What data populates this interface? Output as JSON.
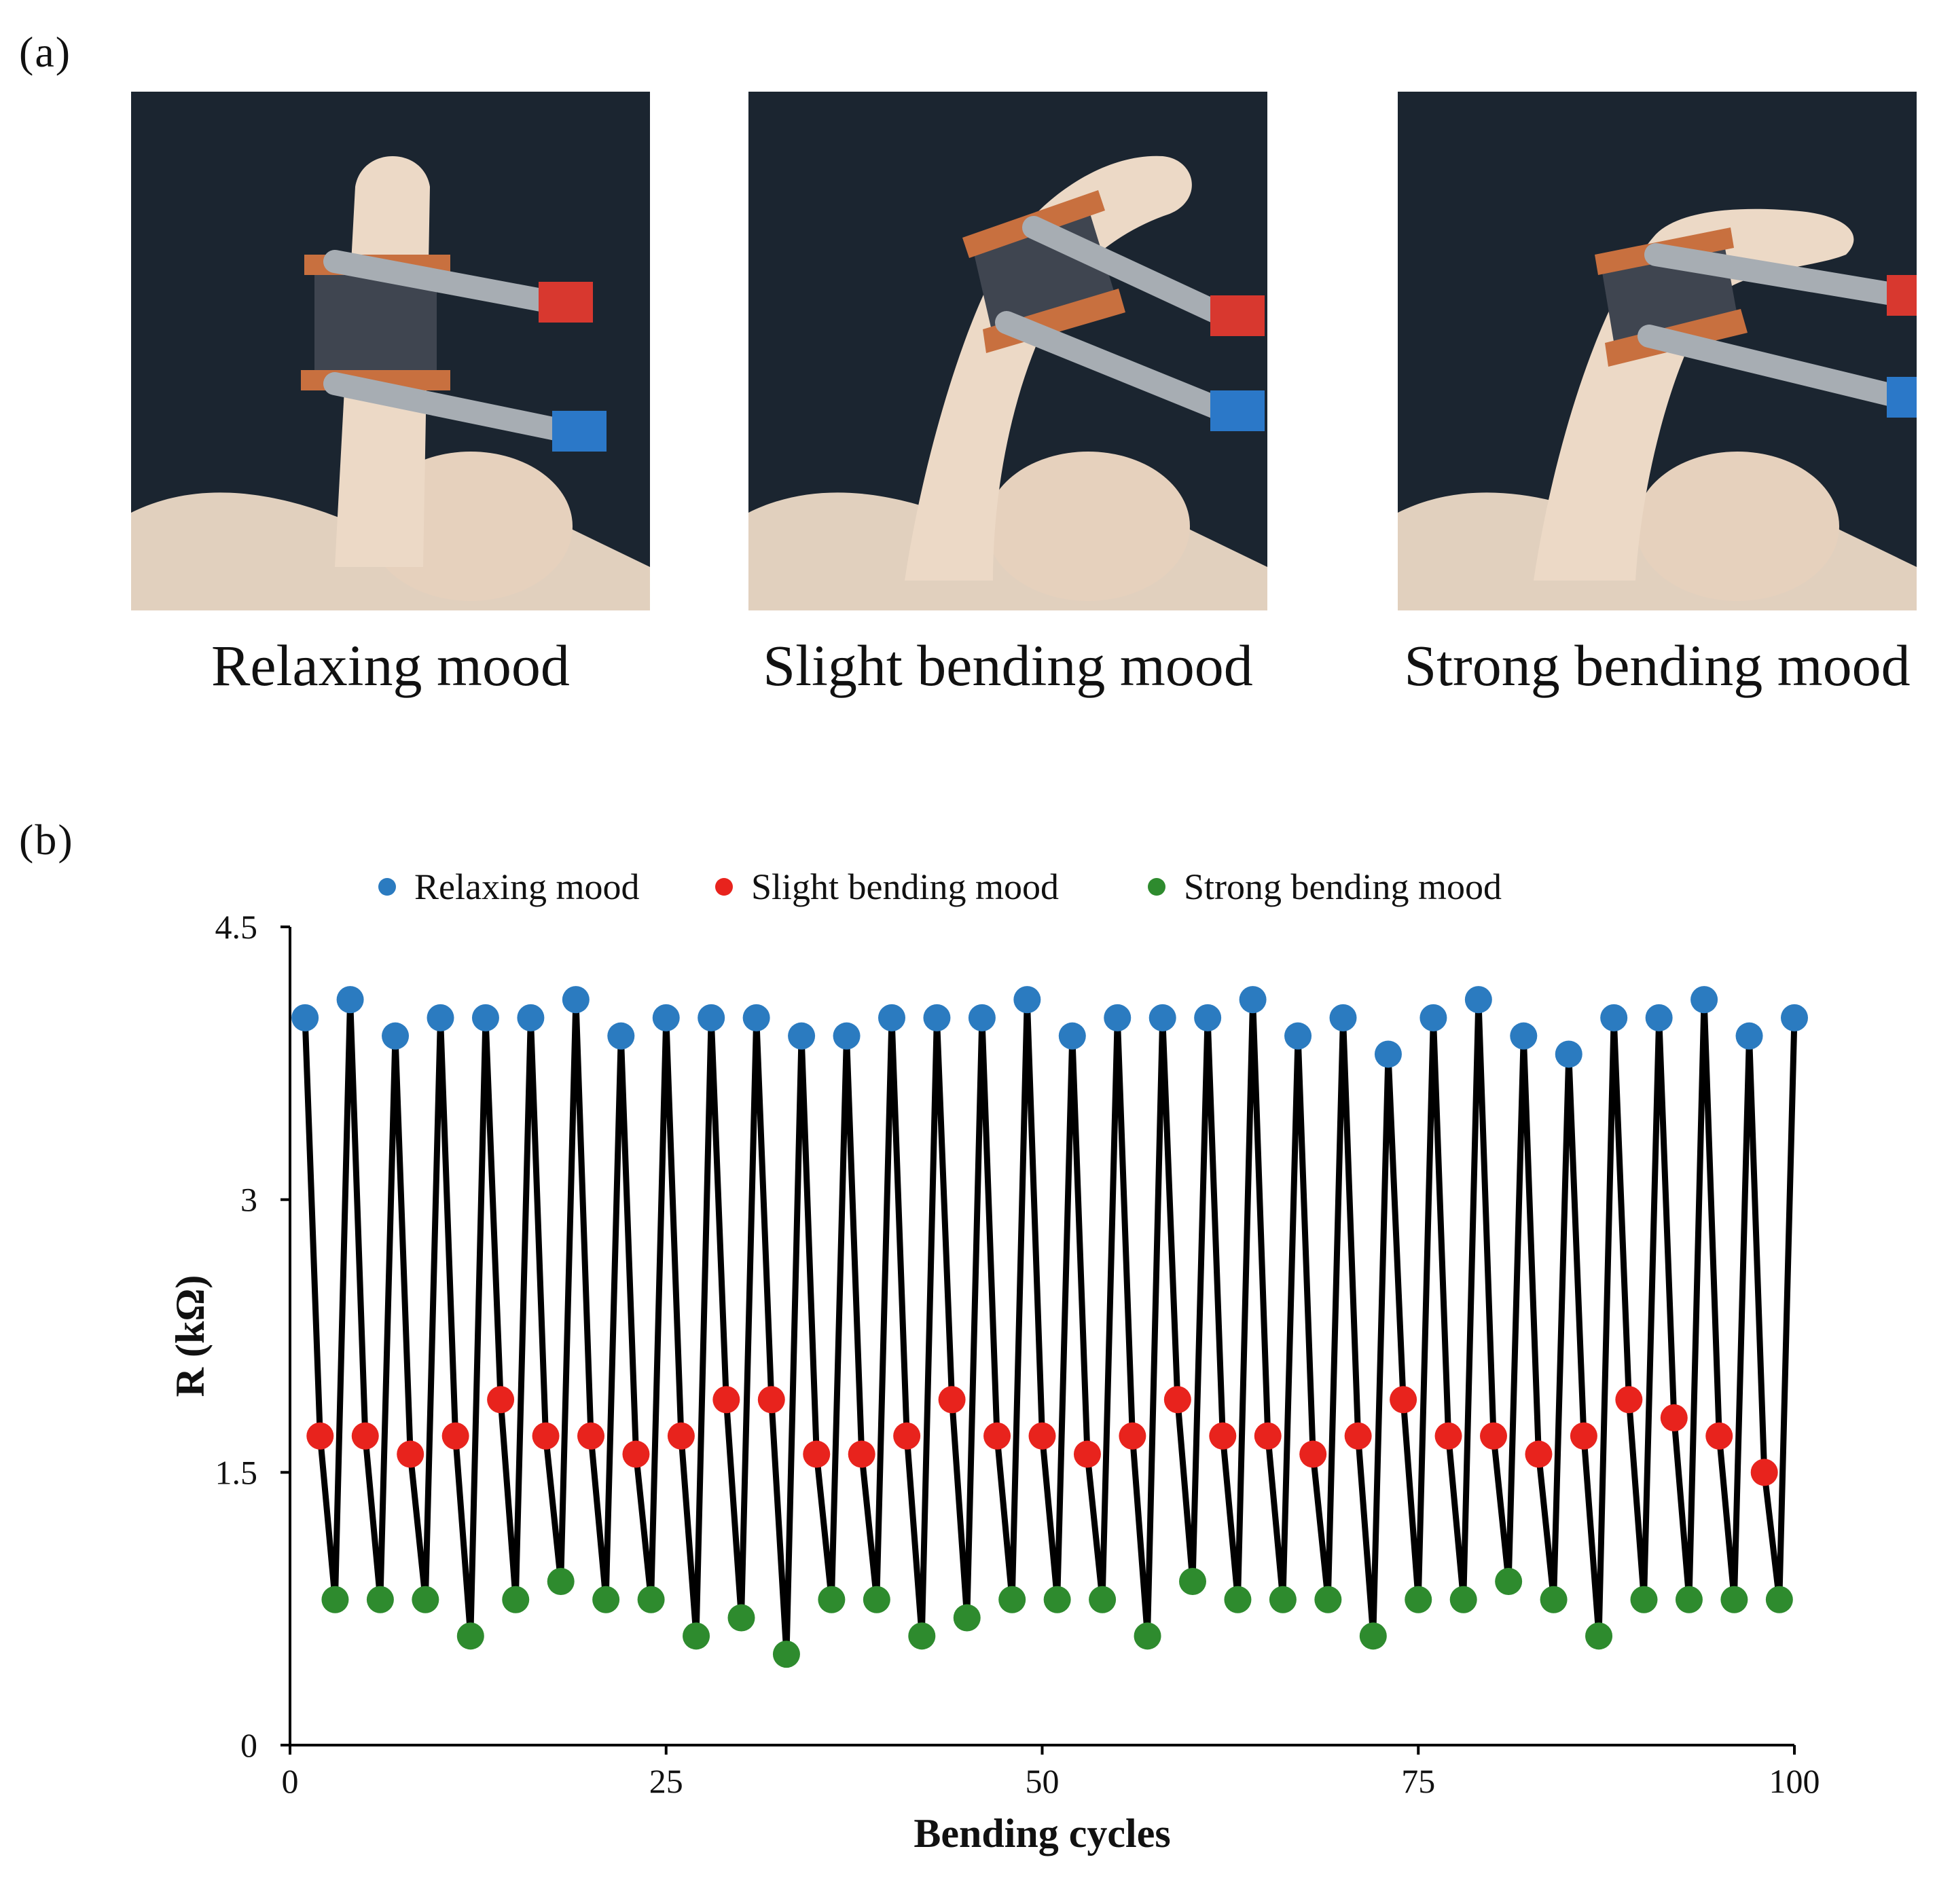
{
  "panels": {
    "a_label": "(a)",
    "b_label": "(b)"
  },
  "photos": [
    {
      "caption": "Relaxing mood",
      "bend": 0
    },
    {
      "caption": "Slight bending mood",
      "bend": 1
    },
    {
      "caption": "Strong bending mood",
      "bend": 2
    }
  ],
  "colors": {
    "relaxing": "#2b7bc0",
    "slight": "#e8231d",
    "strong": "#2e8b2e",
    "line": "#000000",
    "photo_bg": "#1b2530",
    "glove": "#ecd9c6",
    "copper": "#c8703f",
    "fabric": "#3f4550",
    "clip": "#a7adb3"
  },
  "chart_data": {
    "type": "line",
    "title": "",
    "xlabel": "Bending cycles",
    "ylabel": "R (kΩ)",
    "xlim": [
      0,
      100
    ],
    "ylim": [
      0,
      4.5
    ],
    "xticks": [
      0,
      25,
      50,
      75,
      100
    ],
    "yticks": [
      "0",
      "1.5",
      "3",
      "4.5"
    ],
    "yticks_values": [
      0,
      1.5,
      3,
      4.5
    ],
    "legend": [
      "Relaxing mood",
      "Slight bending mood",
      "Strong bending mood"
    ],
    "legend_position": "top-center",
    "x": [
      1,
      2,
      3,
      4,
      5,
      6,
      7,
      8,
      9,
      10,
      11,
      12,
      13,
      14,
      15,
      16,
      17,
      18,
      19,
      20,
      21,
      22,
      23,
      24,
      25,
      26,
      27,
      28,
      29,
      30,
      31,
      32,
      33,
      34,
      35,
      36,
      37,
      38,
      39,
      40,
      41,
      42,
      43,
      44,
      45,
      46,
      47,
      48,
      49,
      50,
      51,
      52,
      53,
      54,
      55,
      56,
      57,
      58,
      59,
      60,
      61,
      62,
      63,
      64,
      65,
      66,
      67,
      68,
      69,
      70,
      71,
      72,
      73,
      74,
      75,
      76,
      77,
      78,
      79,
      80,
      81,
      82,
      83,
      84,
      85,
      86,
      87,
      88,
      89,
      90,
      91,
      92,
      93,
      94,
      95,
      96,
      97,
      98,
      99,
      100
    ],
    "y": [
      4.0,
      1.7,
      0.8,
      4.1,
      1.7,
      0.8,
      3.9,
      1.6,
      0.8,
      4.0,
      1.7,
      0.6,
      4.0,
      1.9,
      0.8,
      4.0,
      1.7,
      0.9,
      4.1,
      1.7,
      0.8,
      3.9,
      1.6,
      0.8,
      4.0,
      1.7,
      0.6,
      4.0,
      1.9,
      0.7,
      4.0,
      1.9,
      0.5,
      3.9,
      1.6,
      0.8,
      3.9,
      1.6,
      0.8,
      4.0,
      1.7,
      0.6,
      4.0,
      1.9,
      0.7,
      4.0,
      1.7,
      0.8,
      4.1,
      1.7,
      0.8,
      3.9,
      1.6,
      0.8,
      4.0,
      1.7,
      0.6,
      4.0,
      1.9,
      0.9,
      4.0,
      1.7,
      0.8,
      4.1,
      1.7,
      0.8,
      3.9,
      1.6,
      0.8,
      4.0,
      1.7,
      0.6,
      3.8,
      1.9,
      0.8,
      4.0,
      1.7,
      0.8,
      4.1,
      1.7,
      0.9,
      3.9,
      1.6,
      0.8,
      3.8,
      1.7,
      0.6,
      4.0,
      1.9,
      0.8,
      4.0,
      1.8,
      0.8,
      4.1,
      1.7,
      0.8,
      3.9,
      1.5,
      0.8,
      4.0
    ],
    "series": [
      {
        "name": "Relaxing mood",
        "color": "#2b7bc0",
        "points": [
          [
            1,
            4.0
          ],
          [
            4,
            4.1
          ],
          [
            7,
            3.9
          ],
          [
            10,
            4.0
          ],
          [
            13,
            4.0
          ],
          [
            16,
            4.0
          ],
          [
            19,
            4.1
          ],
          [
            22,
            3.9
          ],
          [
            25,
            4.0
          ],
          [
            28,
            4.0
          ],
          [
            31,
            4.0
          ],
          [
            34,
            3.9
          ],
          [
            37,
            3.9
          ],
          [
            40,
            4.0
          ],
          [
            43,
            4.0
          ],
          [
            46,
            4.0
          ],
          [
            49,
            4.1
          ],
          [
            52,
            3.9
          ],
          [
            55,
            4.0
          ],
          [
            58,
            4.0
          ],
          [
            61,
            4.0
          ],
          [
            64,
            4.1
          ],
          [
            67,
            3.9
          ],
          [
            70,
            4.0
          ],
          [
            73,
            3.8
          ],
          [
            76,
            4.0
          ],
          [
            79,
            4.1
          ],
          [
            82,
            3.9
          ],
          [
            85,
            3.8
          ],
          [
            88,
            4.0
          ],
          [
            91,
            4.0
          ],
          [
            94,
            4.1
          ],
          [
            97,
            3.9
          ],
          [
            100,
            4.0
          ]
        ]
      },
      {
        "name": "Slight bending mood",
        "color": "#e8231d",
        "points": [
          [
            2,
            1.7
          ],
          [
            5,
            1.7
          ],
          [
            8,
            1.6
          ],
          [
            11,
            1.7
          ],
          [
            14,
            1.9
          ],
          [
            17,
            1.7
          ],
          [
            20,
            1.7
          ],
          [
            23,
            1.6
          ],
          [
            26,
            1.7
          ],
          [
            29,
            1.9
          ],
          [
            32,
            1.9
          ],
          [
            35,
            1.6
          ],
          [
            38,
            1.6
          ],
          [
            41,
            1.7
          ],
          [
            44,
            1.9
          ],
          [
            47,
            1.7
          ],
          [
            50,
            1.7
          ],
          [
            53,
            1.6
          ],
          [
            56,
            1.7
          ],
          [
            59,
            1.9
          ],
          [
            62,
            1.7
          ],
          [
            65,
            1.7
          ],
          [
            68,
            1.6
          ],
          [
            71,
            1.7
          ],
          [
            74,
            1.9
          ],
          [
            77,
            1.7
          ],
          [
            80,
            1.7
          ],
          [
            83,
            1.6
          ],
          [
            86,
            1.7
          ],
          [
            89,
            1.9
          ],
          [
            92,
            1.8
          ],
          [
            95,
            1.7
          ],
          [
            98,
            1.5
          ]
        ]
      },
      {
        "name": "Strong bending mood",
        "color": "#2e8b2e",
        "points": [
          [
            3,
            0.8
          ],
          [
            6,
            0.8
          ],
          [
            9,
            0.8
          ],
          [
            12,
            0.6
          ],
          [
            15,
            0.8
          ],
          [
            18,
            0.9
          ],
          [
            21,
            0.8
          ],
          [
            24,
            0.8
          ],
          [
            27,
            0.6
          ],
          [
            30,
            0.7
          ],
          [
            33,
            0.5
          ],
          [
            36,
            0.8
          ],
          [
            39,
            0.8
          ],
          [
            42,
            0.6
          ],
          [
            45,
            0.7
          ],
          [
            48,
            0.8
          ],
          [
            51,
            0.8
          ],
          [
            54,
            0.8
          ],
          [
            57,
            0.6
          ],
          [
            60,
            0.9
          ],
          [
            63,
            0.8
          ],
          [
            66,
            0.8
          ],
          [
            69,
            0.8
          ],
          [
            72,
            0.6
          ],
          [
            75,
            0.8
          ],
          [
            78,
            0.8
          ],
          [
            81,
            0.9
          ],
          [
            84,
            0.8
          ],
          [
            87,
            0.6
          ],
          [
            90,
            0.8
          ],
          [
            93,
            0.8
          ],
          [
            96,
            0.8
          ],
          [
            99,
            0.8
          ]
        ]
      }
    ]
  }
}
